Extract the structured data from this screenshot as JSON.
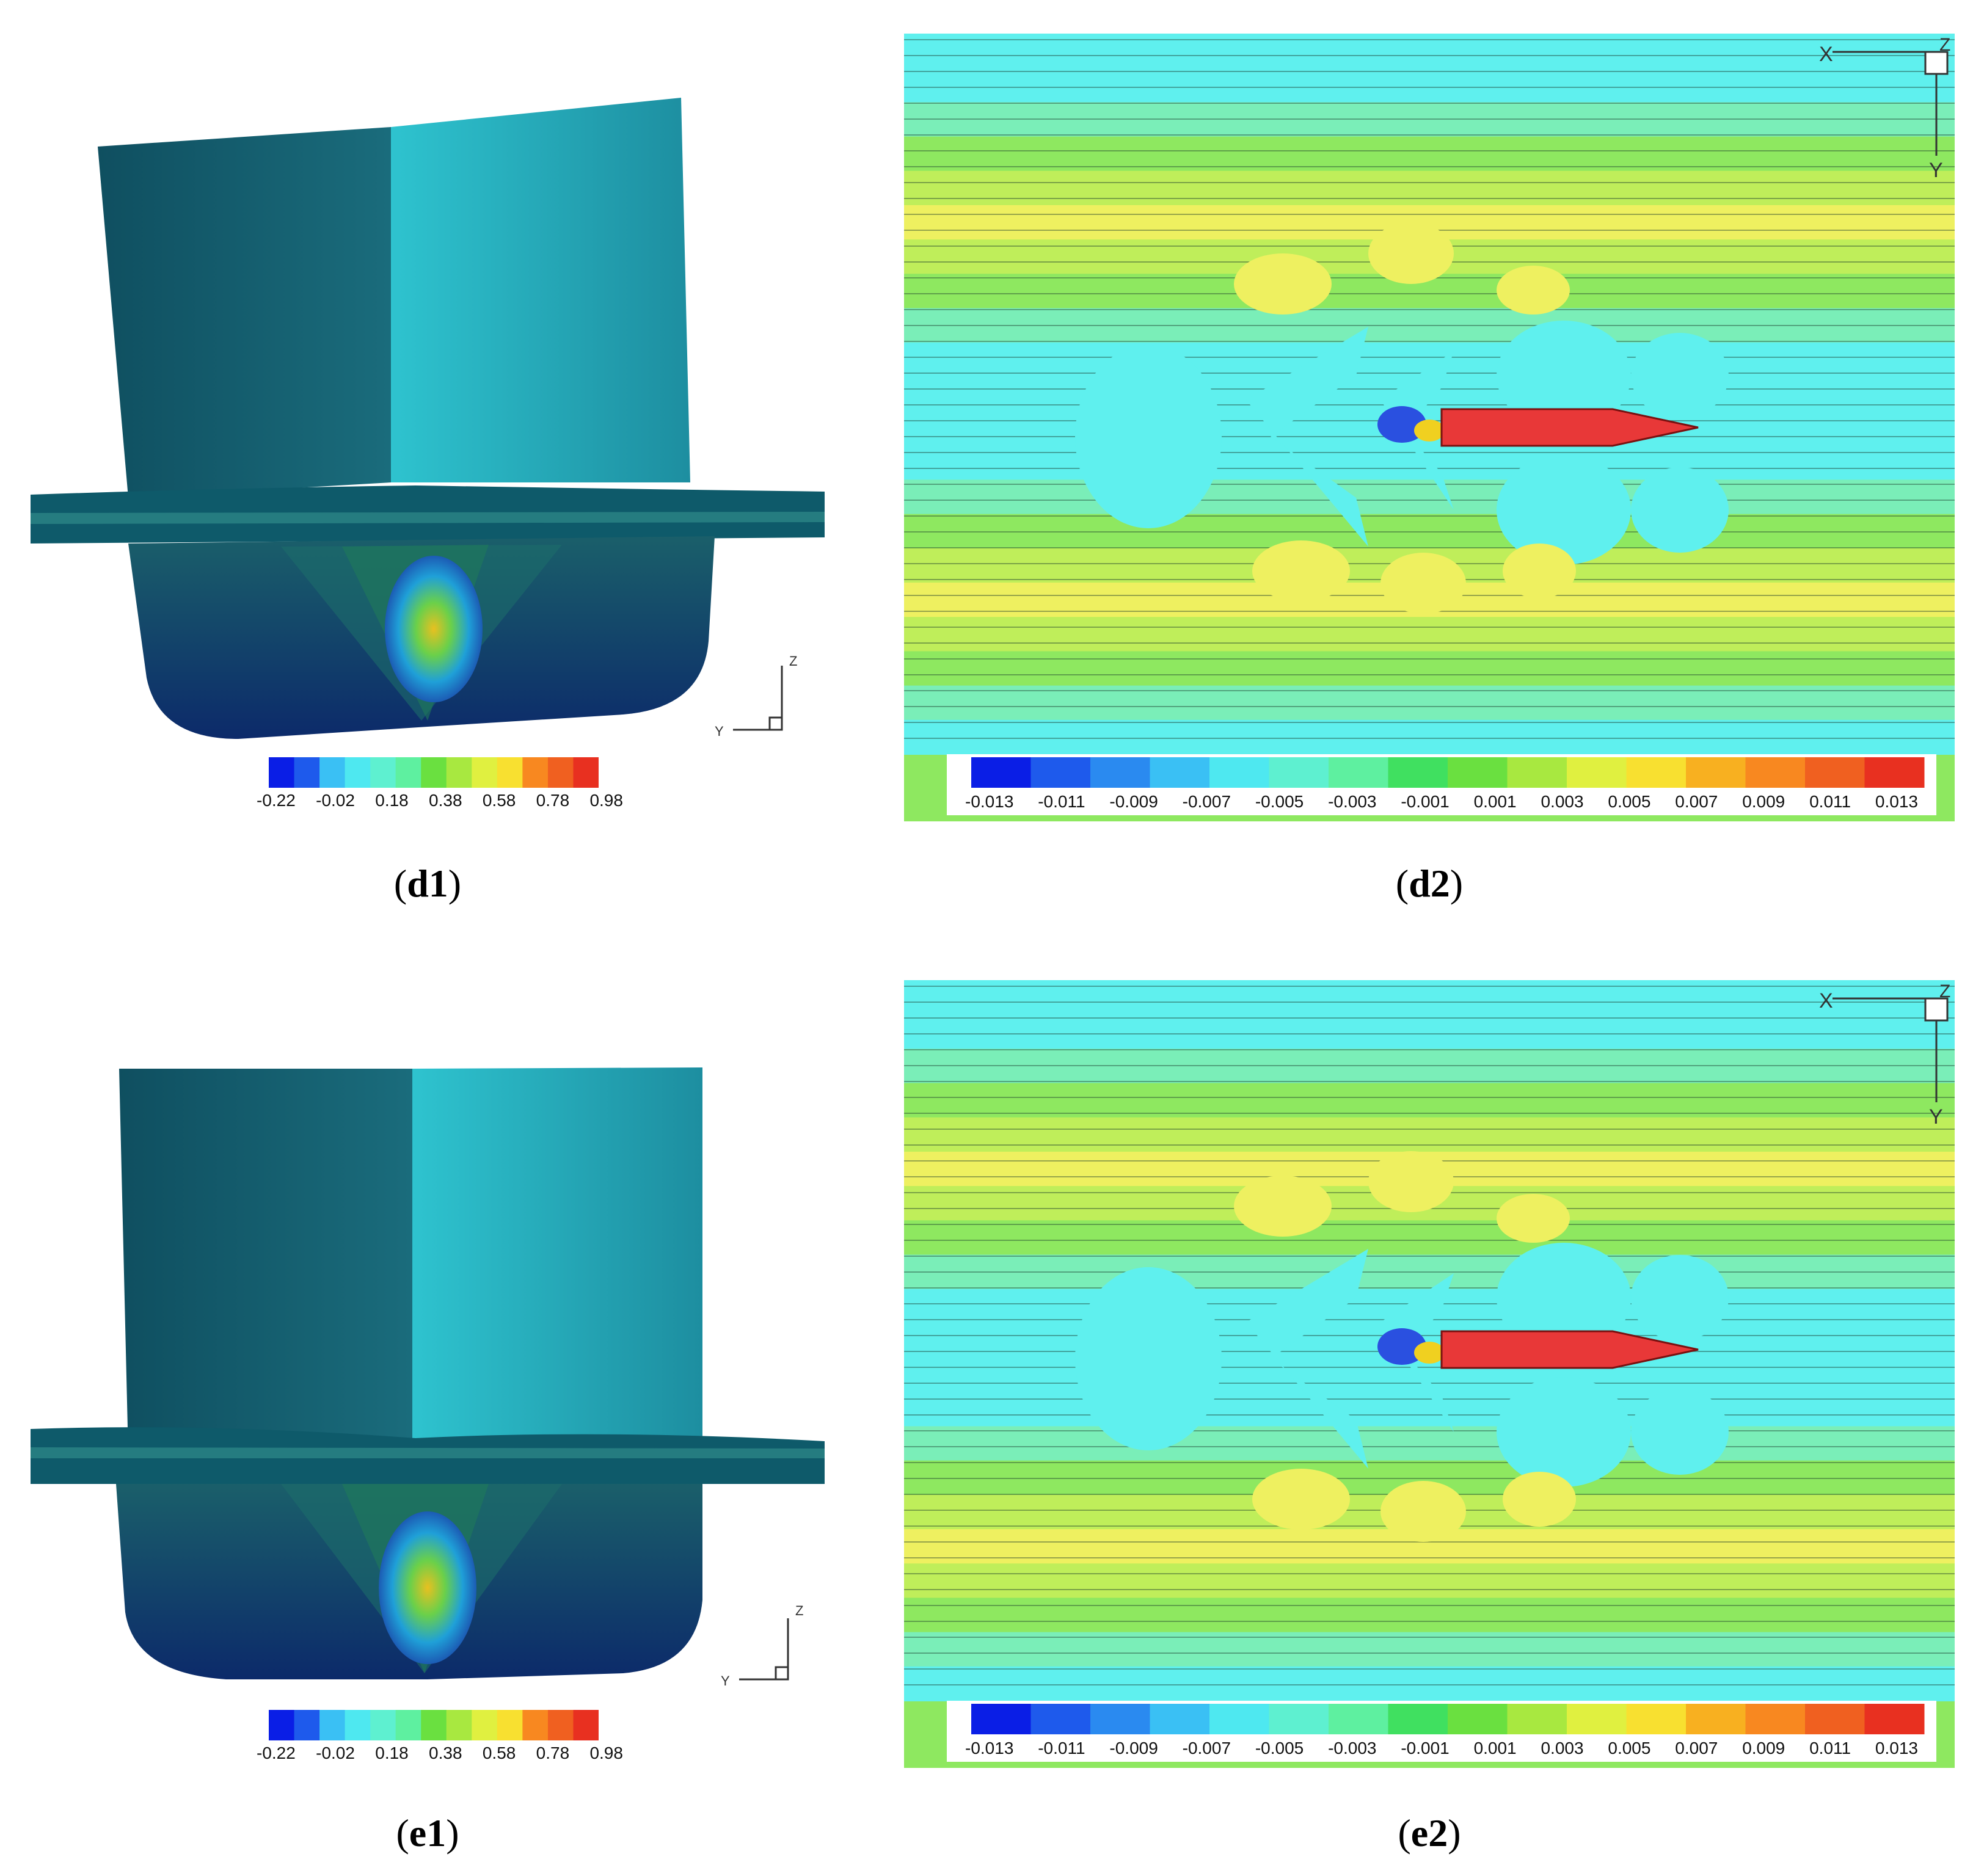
{
  "panels": [
    {
      "id": "d1",
      "caption_prefix": "(",
      "caption_label": "d1",
      "caption_suffix": ")",
      "colorbar_ticks": [
        "-0.22",
        "-0.02",
        "0.18",
        "0.38",
        "0.58",
        "0.78",
        "0.98"
      ],
      "axis_labels": {
        "z": "Z",
        "y": "Y"
      }
    },
    {
      "id": "d2",
      "caption_prefix": "(",
      "caption_label": "d2",
      "caption_suffix": ")",
      "colorbar_ticks": [
        "-0.013",
        "-0.011",
        "-0.009",
        "-0.007",
        "-0.005",
        "-0.003",
        "-0.001",
        "0.001",
        "0.003",
        "0.005",
        "0.007",
        "0.009",
        "0.011",
        "0.013"
      ],
      "axis_labels": {
        "x": "X",
        "y": "Y",
        "z": "Z"
      }
    },
    {
      "id": "e1",
      "caption_prefix": "(",
      "caption_label": "e1",
      "caption_suffix": ")",
      "colorbar_ticks": [
        "-0.22",
        "-0.02",
        "0.18",
        "0.38",
        "0.58",
        "0.78",
        "0.98"
      ],
      "axis_labels": {
        "z": "Z",
        "y": "Y"
      }
    },
    {
      "id": "e2",
      "caption_prefix": "(",
      "caption_label": "e2",
      "caption_suffix": ")",
      "colorbar_ticks": [
        "-0.013",
        "-0.011",
        "-0.009",
        "-0.007",
        "-0.005",
        "-0.003",
        "-0.001",
        "0.001",
        "0.003",
        "0.005",
        "0.007",
        "0.009",
        "0.011",
        "0.013"
      ],
      "axis_labels": {
        "x": "X",
        "y": "Y",
        "z": "Z"
      }
    }
  ],
  "colors": {
    "hull_dark": "#0d4a5c",
    "hull_light": "#2fb8c6",
    "waterline": "#0e5a6a",
    "field_cyan": "#5ff0ee",
    "field_green": "#8ee860",
    "field_yellow": "#eef060",
    "hull_red": "#e83838"
  }
}
